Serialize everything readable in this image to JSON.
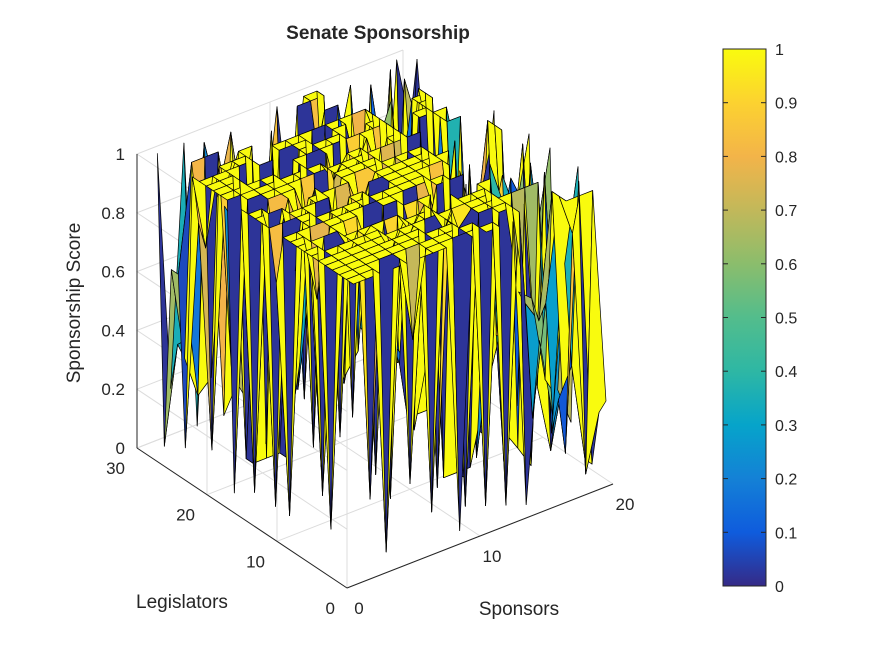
{
  "chart_data": {
    "type": "surface3d",
    "title": "Senate Sponsorship",
    "xlabel": "Sponsors",
    "ylabel": "Legislators",
    "zlabel": "Sponsorship Score",
    "x_ticks": [
      "0",
      "10",
      "20"
    ],
    "y_ticks": [
      "0",
      "10",
      "20",
      "30"
    ],
    "z_ticks": [
      "0",
      "0.2",
      "0.4",
      "0.6",
      "0.8",
      "1"
    ],
    "xlim": [
      0,
      20
    ],
    "ylim": [
      0,
      30
    ],
    "zlim": [
      0,
      1
    ],
    "grid": true,
    "colormap": "parula",
    "colorbar": {
      "ticks": [
        "0",
        "0.1",
        "0.2",
        "0.3",
        "0.4",
        "0.5",
        "0.6",
        "0.7",
        "0.8",
        "0.9",
        "1"
      ],
      "range": [
        0,
        1
      ]
    },
    "grid_size": {
      "sponsors": 20,
      "legislators": 29
    },
    "value_summary": "Scores are mostly 1 (yellow plateau) with scattered deep dips toward 0 and mid-range cells (0.1–0.9) concentrated along the Sponsors ≈ 15–20 and Legislators ≈ 25–29 edges."
  }
}
